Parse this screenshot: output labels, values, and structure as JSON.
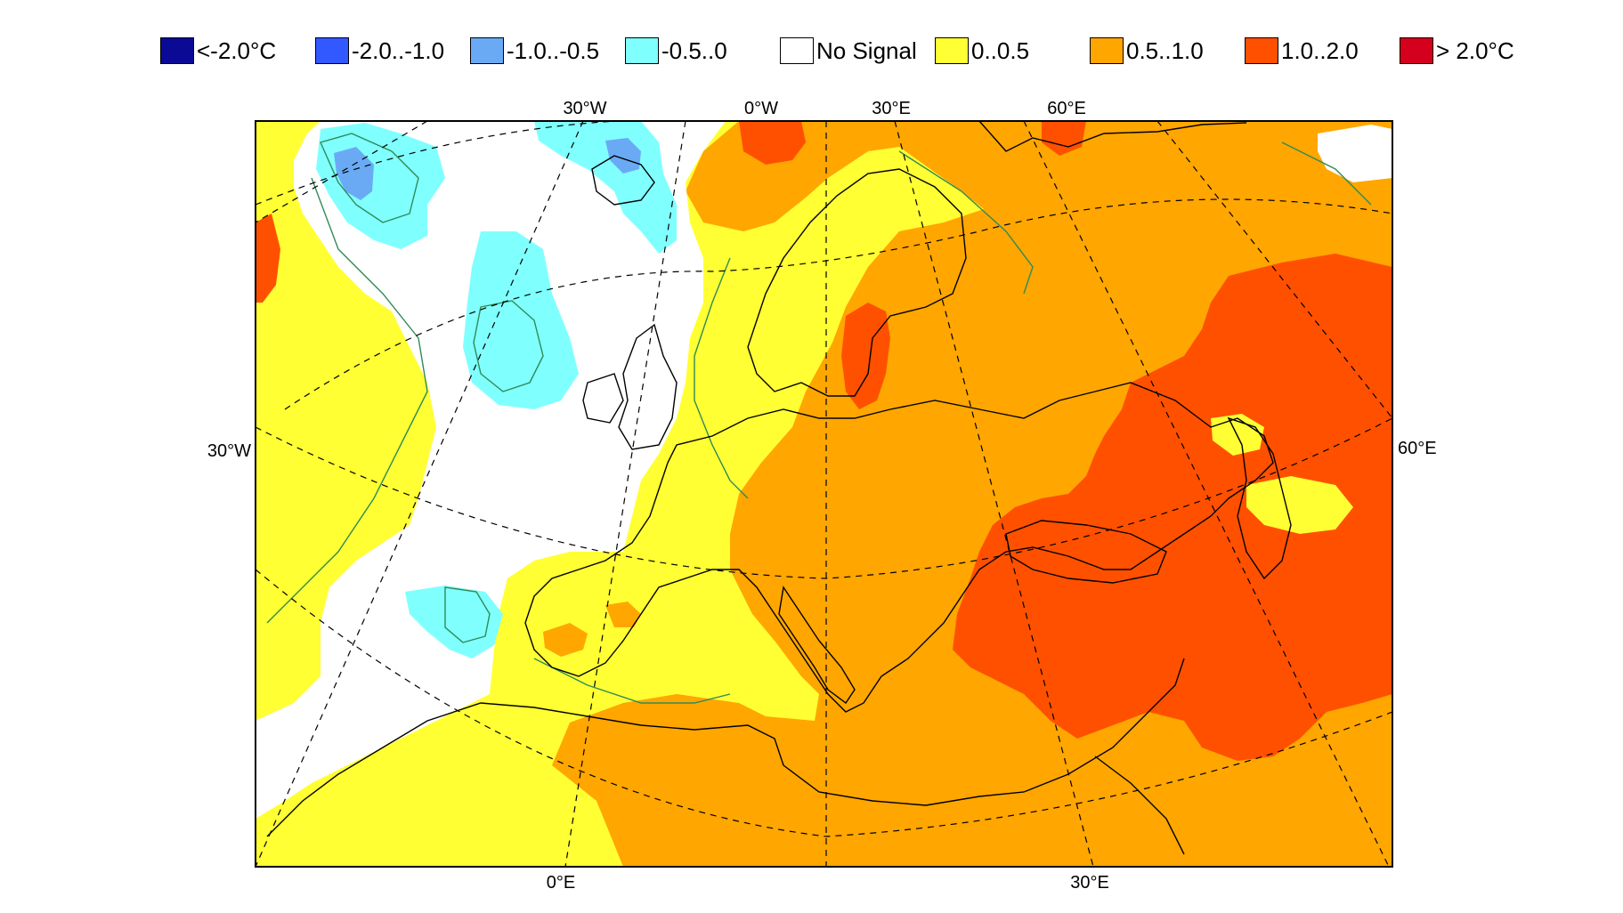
{
  "legend": [
    {
      "label": "<-2.0°C",
      "color": "#0a0a96"
    },
    {
      "label": "-2.0..-1.0",
      "color": "#3259ff"
    },
    {
      "label": "-1.0..-0.5",
      "color": "#6aaaf5"
    },
    {
      "label": "-0.5..0",
      "color": "#80ffff"
    },
    {
      "label": "No Signal",
      "color": "#ffffff"
    },
    {
      "label": "0..0.5",
      "color": "#ffff33"
    },
    {
      "label": "0.5..1.0",
      "color": "#ffa600"
    },
    {
      "label": "1.0..2.0",
      "color": "#ff5000"
    },
    {
      "label": "> 2.0°C",
      "color": "#d4001e"
    }
  ],
  "graticule_labels": {
    "top": [
      "30°W",
      "0°W",
      "30°E",
      "60°E"
    ],
    "bottom": [
      "0°E",
      "30°E"
    ],
    "left": [
      "30°W"
    ],
    "right": [
      "60°E"
    ]
  },
  "colors": {
    "frame": "#000000",
    "coastline": "#000000",
    "contour": "#2e8b57",
    "graticule": "#000000"
  }
}
